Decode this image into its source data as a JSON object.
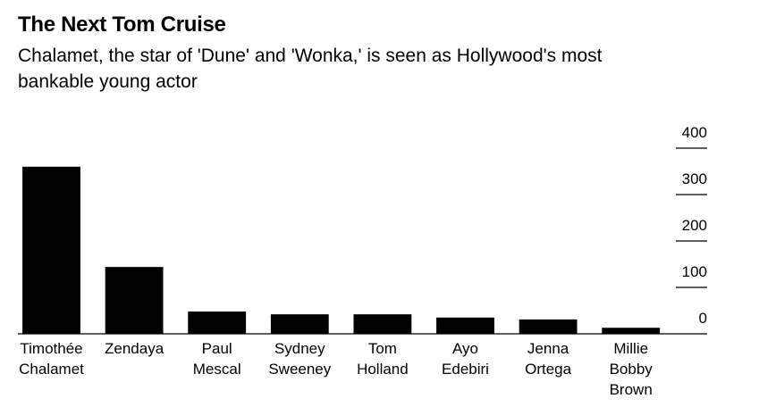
{
  "chart_data": {
    "type": "bar",
    "title": "The Next Tom Cruise",
    "subtitle": "Chalamet, the star of 'Dune' and 'Wonka,' is seen as Hollywood's most bankable young actor",
    "categories": [
      "Timothée Chalamet",
      "Zendaya",
      "Paul Mescal",
      "Sydney Sweeney",
      "Tom Holland",
      "Ayo Edebiri",
      "Jenna Ortega",
      "Millie Bobby Brown"
    ],
    "values": [
      360,
      144,
      48,
      42,
      42,
      35,
      31,
      13
    ],
    "color": "#000000",
    "ylim": [
      0,
      400
    ],
    "yticks": [
      0,
      100,
      200,
      300,
      400
    ],
    "axis_side": "right"
  }
}
